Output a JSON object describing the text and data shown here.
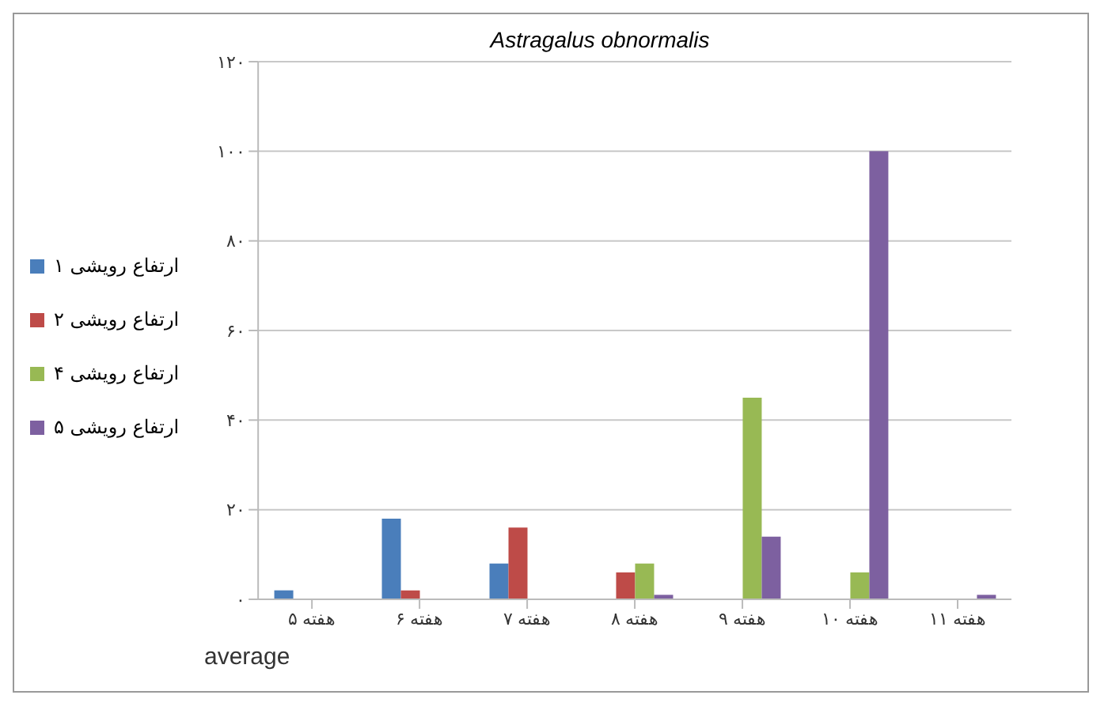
{
  "chart_data": {
    "type": "bar",
    "title": "Astragalus obnormalis",
    "xlabel": "average",
    "categories": [
      "هفته ۵",
      "هفته ۶",
      "هفته ۷",
      "هفته ۸",
      "هفته ۹",
      "هفته ۱۰",
      "هفته ۱۱"
    ],
    "series": [
      {
        "name": "ارتفاع رویشی ۱",
        "color": "#4a7ebb",
        "values": [
          2,
          18,
          8,
          0,
          0,
          0,
          0
        ]
      },
      {
        "name": "ارتفاع رویشی ۲",
        "color": "#be4b48",
        "values": [
          0,
          2,
          16,
          6,
          0,
          0,
          0
        ]
      },
      {
        "name": "ارتفاع رویشی ۴",
        "color": "#98b954",
        "values": [
          0,
          0,
          0,
          8,
          45,
          6,
          0
        ]
      },
      {
        "name": "ارتفاع رویشی ۵",
        "color": "#7d60a0",
        "values": [
          0,
          0,
          0,
          1,
          14,
          100,
          1
        ]
      }
    ],
    "ylim": [
      0,
      120
    ],
    "yticks": [
      {
        "value": 0,
        "label": "۰"
      },
      {
        "value": 20,
        "label": "۲۰"
      },
      {
        "value": 40,
        "label": "۴۰"
      },
      {
        "value": 60,
        "label": "۶۰"
      },
      {
        "value": 80,
        "label": "۸۰"
      },
      {
        "value": 100,
        "label": "۱۰۰"
      },
      {
        "value": 120,
        "label": "۱۲۰"
      }
    ],
    "grid": "y",
    "legend": "left"
  }
}
